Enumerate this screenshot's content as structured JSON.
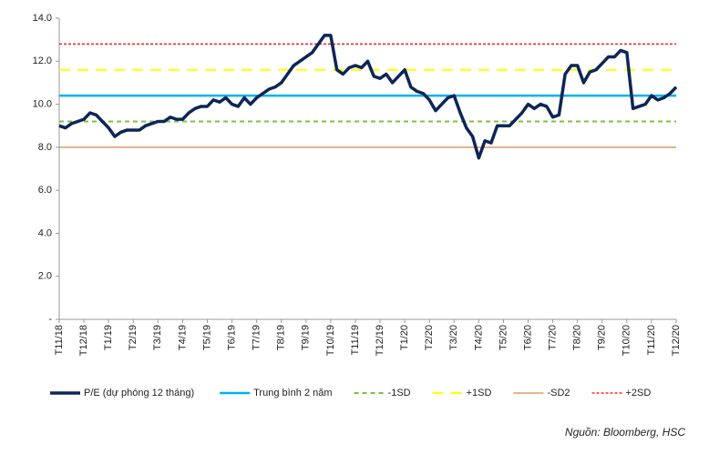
{
  "chart_data": {
    "type": "line",
    "categories": [
      "T11/18",
      null,
      null,
      null,
      "T12/18",
      null,
      null,
      null,
      "T1/19",
      null,
      null,
      null,
      "T2/19",
      null,
      null,
      null,
      "T3/19",
      null,
      null,
      null,
      "T4/19",
      null,
      null,
      null,
      "T5/19",
      null,
      null,
      null,
      "T6/19",
      null,
      null,
      null,
      "T7/19",
      null,
      null,
      null,
      "T8/19",
      null,
      null,
      null,
      "T9/19",
      null,
      null,
      null,
      "T10/19",
      null,
      null,
      null,
      "T11/19",
      null,
      null,
      null,
      "T12/19",
      null,
      null,
      null,
      "T1/20",
      null,
      null,
      null,
      "T2/20",
      null,
      null,
      null,
      "T3/20",
      null,
      null,
      null,
      "T4/20",
      null,
      null,
      null,
      "T5/20",
      null,
      null,
      null,
      "T6/20",
      null,
      null,
      null,
      "T7/20",
      null,
      null,
      null,
      "T8/20",
      null,
      null,
      null,
      "T9/20",
      null,
      null,
      null,
      "T10/20",
      null,
      null,
      null,
      "T11/20",
      null,
      null,
      null,
      "T12/20"
    ],
    "series": [
      {
        "name": "P/E (dự phóng 12 tháng)",
        "color": "#0d2657",
        "values": [
          9.0,
          8.9,
          9.1,
          9.2,
          9.3,
          9.6,
          9.5,
          9.2,
          8.9,
          8.5,
          8.7,
          8.8,
          8.8,
          8.8,
          9.0,
          9.1,
          9.2,
          9.2,
          9.4,
          9.3,
          9.3,
          9.6,
          9.8,
          9.9,
          9.9,
          10.2,
          10.1,
          10.3,
          10.0,
          9.9,
          10.3,
          10.0,
          10.3,
          10.5,
          10.7,
          10.8,
          11.0,
          11.4,
          11.8,
          12.0,
          12.2,
          12.4,
          12.8,
          13.2,
          13.2,
          11.6,
          11.4,
          11.7,
          11.8,
          11.7,
          12.0,
          11.3,
          11.2,
          11.4,
          11.0,
          11.3,
          11.6,
          10.8,
          10.6,
          10.5,
          10.2,
          9.7,
          10.0,
          10.3,
          10.4,
          9.6,
          8.9,
          8.5,
          7.5,
          8.3,
          8.2,
          9.0,
          9.0,
          9.0,
          9.3,
          9.6,
          10.0,
          9.8,
          10.0,
          9.9,
          9.4,
          9.5,
          11.4,
          11.8,
          11.8,
          11.0,
          11.5,
          11.6,
          11.9,
          12.2,
          12.2,
          12.5,
          12.4,
          9.8,
          9.9,
          10.0,
          10.4,
          10.2,
          10.3,
          10.5,
          10.8
        ]
      }
    ],
    "reference_lines": [
      {
        "name": "Trung bình 2 năm",
        "value": 10.4,
        "color": "#00b0f0",
        "style": "solid"
      },
      {
        "name": "-1SD",
        "value": 9.2,
        "color": "#7cc242",
        "style": "dashed"
      },
      {
        "name": "+1SD",
        "value": 11.6,
        "color": "#ffff00",
        "style": "longdash"
      },
      {
        "name": "-SD2",
        "value": 8.0,
        "color": "#d08a4a",
        "style": "thin"
      },
      {
        "name": "+2SD",
        "value": 12.8,
        "color": "#ff0000",
        "style": "dotted"
      }
    ],
    "ylim": [
      0,
      14
    ],
    "yticks": [
      {
        "value": 0,
        "label": "-"
      },
      {
        "value": 2,
        "label": "2.0"
      },
      {
        "value": 4,
        "label": "4.0"
      },
      {
        "value": 6,
        "label": "6.0"
      },
      {
        "value": 8,
        "label": "8.0"
      },
      {
        "value": 10,
        "label": "10.0"
      },
      {
        "value": 12,
        "label": "12.0"
      },
      {
        "value": 14,
        "label": "14.0"
      }
    ],
    "source": "Nguồn: Bloomberg, HSC"
  }
}
